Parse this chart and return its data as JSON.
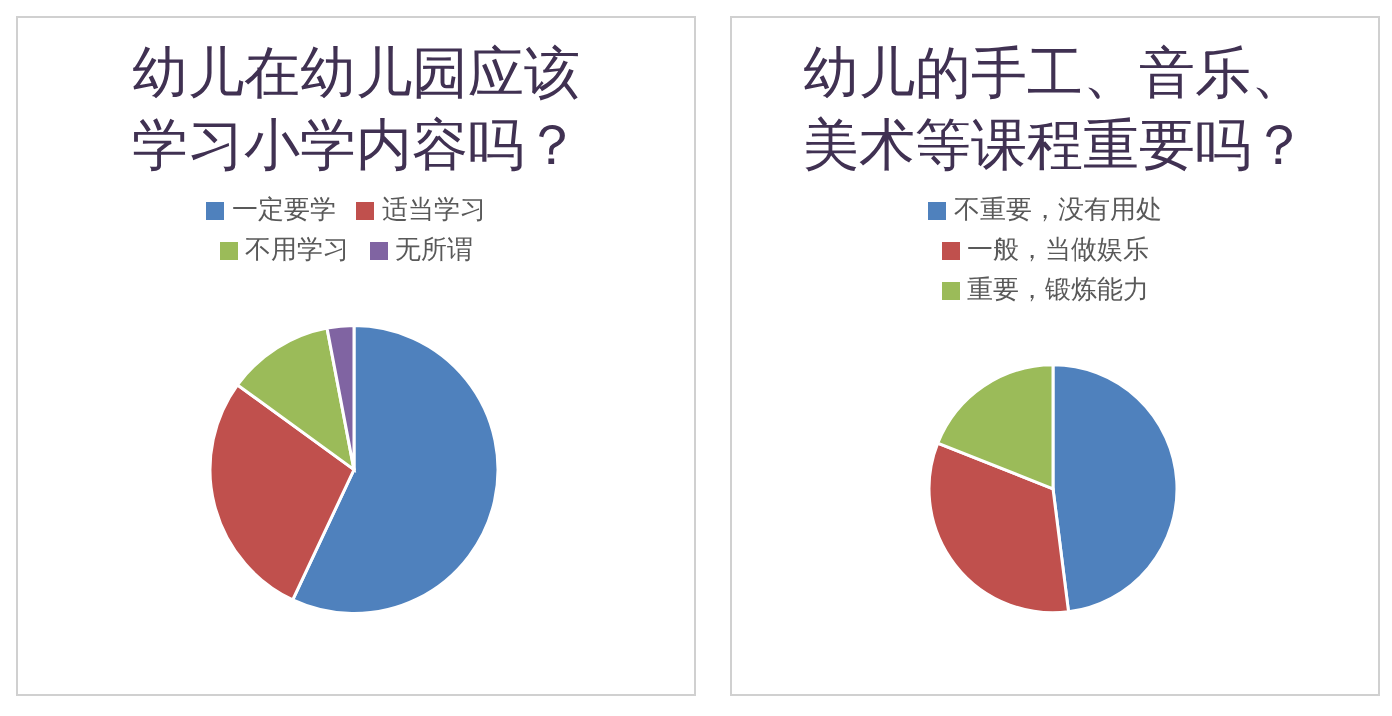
{
  "chart_data": [
    {
      "type": "pie",
      "title": "幼儿在幼儿园应该学习小学内容吗？",
      "categories": [
        "一定要学",
        "适当学习",
        "不用学习",
        "无所谓"
      ],
      "values": [
        57,
        28,
        12,
        3
      ],
      "colors": [
        "#4f81bd",
        "#c0504d",
        "#9bbb59",
        "#8064a2"
      ],
      "legend": "top"
    },
    {
      "type": "pie",
      "title": "幼儿的手工、音乐、美术等课程重要吗？",
      "categories": [
        "不重要，没有用处",
        "一般，当做娱乐",
        "重要，锻炼能力"
      ],
      "values": [
        48,
        33,
        19
      ],
      "colors": [
        "#4f81bd",
        "#c0504d",
        "#9bbb59"
      ],
      "legend": "top"
    }
  ]
}
